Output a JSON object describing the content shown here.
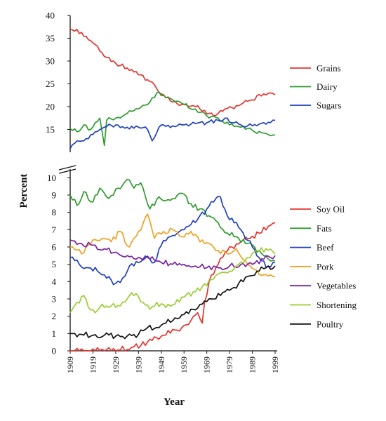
{
  "chart_data": {
    "type": "line",
    "xlabel": "Year",
    "ylabel": "Percent",
    "x_tick_labels": [
      "1909",
      "1919",
      "1929",
      "1939",
      "1949",
      "1959",
      "1969",
      "1979",
      "1989",
      "1999"
    ],
    "upper_panel": {
      "ylim": [
        10,
        40
      ],
      "y_tick_labels": [
        "15",
        "20",
        "25",
        "30",
        "35",
        "40"
      ],
      "legend_position": "right",
      "series": [
        {
          "name": "Grains",
          "color": "#e3342f",
          "points": [
            [
              1909,
              37
            ],
            [
              1914,
              36.3
            ],
            [
              1919,
              34
            ],
            [
              1924,
              31
            ],
            [
              1929,
              29.5
            ],
            [
              1934,
              28.5
            ],
            [
              1939,
              27
            ],
            [
              1944,
              25.5
            ],
            [
              1949,
              22.8
            ],
            [
              1954,
              21
            ],
            [
              1959,
              20.5
            ],
            [
              1964,
              20
            ],
            [
              1968,
              19.2
            ],
            [
              1972,
              18
            ],
            [
              1976,
              19
            ],
            [
              1980,
              19.8
            ],
            [
              1984,
              20.5
            ],
            [
              1989,
              21.5
            ],
            [
              1994,
              22.8
            ],
            [
              1997,
              23
            ],
            [
              1999,
              22.6
            ]
          ]
        },
        {
          "name": "Dairy",
          "color": "#2e9b2e",
          "points": [
            [
              1909,
              15.2
            ],
            [
              1912,
              14.5
            ],
            [
              1915,
              16
            ],
            [
              1918,
              15
            ],
            [
              1920,
              16.5
            ],
            [
              1922,
              17.5
            ],
            [
              1924,
              11.5
            ],
            [
              1925,
              17
            ],
            [
              1929,
              17.5
            ],
            [
              1934,
              18.5
            ],
            [
              1939,
              19.5
            ],
            [
              1944,
              21
            ],
            [
              1947,
              23
            ],
            [
              1950,
              22.5
            ],
            [
              1954,
              21.5
            ],
            [
              1959,
              20.5
            ],
            [
              1964,
              19.5
            ],
            [
              1969,
              18
            ],
            [
              1974,
              17.5
            ],
            [
              1979,
              16
            ],
            [
              1984,
              15.5
            ],
            [
              1989,
              14.8
            ],
            [
              1994,
              14.2
            ],
            [
              1999,
              13.8
            ]
          ]
        },
        {
          "name": "Sugars",
          "color": "#1f3fbf",
          "points": [
            [
              1909,
              10.8
            ],
            [
              1912,
              12.5
            ],
            [
              1916,
              13
            ],
            [
              1920,
              14.5
            ],
            [
              1924,
              15.5
            ],
            [
              1929,
              16
            ],
            [
              1934,
              15.5
            ],
            [
              1939,
              15.5
            ],
            [
              1943,
              15
            ],
            [
              1945,
              12.5
            ],
            [
              1948,
              15.5
            ],
            [
              1954,
              15.8
            ],
            [
              1959,
              16
            ],
            [
              1964,
              16.3
            ],
            [
              1969,
              16.5
            ],
            [
              1974,
              17
            ],
            [
              1977,
              17.5
            ],
            [
              1980,
              16.5
            ],
            [
              1984,
              16
            ],
            [
              1989,
              15.8
            ],
            [
              1994,
              16.5
            ],
            [
              1999,
              17
            ]
          ]
        }
      ]
    },
    "lower_panel": {
      "ylim": [
        0,
        10.5
      ],
      "y_tick_labels": [
        "0",
        "1",
        "2",
        "3",
        "4",
        "5",
        "6",
        "7",
        "8",
        "9",
        "10"
      ],
      "legend_position": "right",
      "series": [
        {
          "name": "Soy Oil",
          "color": "#e3342f",
          "points": [
            [
              1909,
              0
            ],
            [
              1920,
              0
            ],
            [
              1930,
              0.05
            ],
            [
              1936,
              0.2
            ],
            [
              1940,
              0.3
            ],
            [
              1945,
              0.6
            ],
            [
              1950,
              0.9
            ],
            [
              1955,
              1.2
            ],
            [
              1960,
              1.5
            ],
            [
              1965,
              2.2
            ],
            [
              1967,
              1.6
            ],
            [
              1968,
              2.8
            ],
            [
              1970,
              4
            ],
            [
              1973,
              4.8
            ],
            [
              1976,
              5.4
            ],
            [
              1980,
              6
            ],
            [
              1984,
              6.3
            ],
            [
              1988,
              6.5
            ],
            [
              1992,
              6.8
            ],
            [
              1996,
              7.2
            ],
            [
              1999,
              7.4
            ]
          ]
        },
        {
          "name": "Fats",
          "color": "#2e9b2e",
          "points": [
            [
              1909,
              9
            ],
            [
              1912,
              8.4
            ],
            [
              1915,
              9.2
            ],
            [
              1919,
              8.6
            ],
            [
              1922,
              9.4
            ],
            [
              1926,
              8.8
            ],
            [
              1930,
              9.4
            ],
            [
              1934,
              9.9
            ],
            [
              1937,
              9.4
            ],
            [
              1940,
              9.7
            ],
            [
              1944,
              8.2
            ],
            [
              1948,
              8.9
            ],
            [
              1953,
              8.7
            ],
            [
              1958,
              9.1
            ],
            [
              1962,
              8.5
            ],
            [
              1966,
              8.2
            ],
            [
              1970,
              7.8
            ],
            [
              1974,
              7.4
            ],
            [
              1978,
              6.8
            ],
            [
              1982,
              6.6
            ],
            [
              1986,
              6.2
            ],
            [
              1990,
              6
            ],
            [
              1994,
              5.5
            ],
            [
              1999,
              5.2
            ]
          ]
        },
        {
          "name": "Beef",
          "color": "#1f3fbf",
          "points": [
            [
              1909,
              5.4
            ],
            [
              1913,
              5
            ],
            [
              1917,
              4.8
            ],
            [
              1921,
              4.6
            ],
            [
              1925,
              4.2
            ],
            [
              1929,
              3.9
            ],
            [
              1932,
              4.2
            ],
            [
              1935,
              4.9
            ],
            [
              1939,
              5.1
            ],
            [
              1943,
              5.4
            ],
            [
              1946,
              5.1
            ],
            [
              1949,
              6.1
            ],
            [
              1953,
              6.6
            ],
            [
              1957,
              6.9
            ],
            [
              1961,
              7.2
            ],
            [
              1965,
              7.6
            ],
            [
              1969,
              8.2
            ],
            [
              1972,
              8.6
            ],
            [
              1975,
              8.9
            ],
            [
              1978,
              7.8
            ],
            [
              1981,
              7.4
            ],
            [
              1985,
              6.8
            ],
            [
              1989,
              6
            ],
            [
              1993,
              5.2
            ],
            [
              1996,
              4.9
            ],
            [
              1999,
              5.1
            ]
          ]
        },
        {
          "name": "Pork",
          "color": "#f0a020",
          "points": [
            [
              1909,
              6
            ],
            [
              1914,
              5.6
            ],
            [
              1919,
              6.4
            ],
            [
              1923,
              6.5
            ],
            [
              1927,
              6.3
            ],
            [
              1931,
              6.9
            ],
            [
              1935,
              6
            ],
            [
              1939,
              6.9
            ],
            [
              1943,
              7.9
            ],
            [
              1946,
              6.5
            ],
            [
              1950,
              6.9
            ],
            [
              1954,
              7
            ],
            [
              1958,
              6.6
            ],
            [
              1962,
              6.9
            ],
            [
              1966,
              6.3
            ],
            [
              1970,
              6.2
            ],
            [
              1974,
              5.8
            ],
            [
              1978,
              5.6
            ],
            [
              1982,
              5.9
            ],
            [
              1986,
              5.2
            ],
            [
              1990,
              4.7
            ],
            [
              1994,
              4.4
            ],
            [
              1999,
              4.3
            ]
          ]
        },
        {
          "name": "Vegetables",
          "color": "#7b1fa2",
          "points": [
            [
              1909,
              6.4
            ],
            [
              1914,
              6.2
            ],
            [
              1919,
              6.1
            ],
            [
              1924,
              5.9
            ],
            [
              1929,
              5.7
            ],
            [
              1934,
              5.5
            ],
            [
              1939,
              5.4
            ],
            [
              1944,
              5.3
            ],
            [
              1949,
              5.1
            ],
            [
              1954,
              5
            ],
            [
              1959,
              5
            ],
            [
              1964,
              4.9
            ],
            [
              1969,
              4.8
            ],
            [
              1974,
              4.8
            ],
            [
              1979,
              4.9
            ],
            [
              1984,
              5
            ],
            [
              1989,
              5
            ],
            [
              1994,
              5.3
            ],
            [
              1999,
              5.5
            ]
          ]
        },
        {
          "name": "Shortening",
          "color": "#9acd32",
          "points": [
            [
              1909,
              2.2
            ],
            [
              1912,
              2.8
            ],
            [
              1915,
              3.2
            ],
            [
              1917,
              2.5
            ],
            [
              1920,
              2.2
            ],
            [
              1923,
              2.7
            ],
            [
              1927,
              2.6
            ],
            [
              1931,
              2.6
            ],
            [
              1935,
              3.2
            ],
            [
              1938,
              3.3
            ],
            [
              1941,
              2.8
            ],
            [
              1944,
              2.4
            ],
            [
              1947,
              2.8
            ],
            [
              1951,
              2.5
            ],
            [
              1955,
              2.7
            ],
            [
              1959,
              3.1
            ],
            [
              1963,
              3.4
            ],
            [
              1967,
              3.7
            ],
            [
              1971,
              4.1
            ],
            [
              1975,
              4.5
            ],
            [
              1979,
              4.6
            ],
            [
              1983,
              5
            ],
            [
              1987,
              5.4
            ],
            [
              1991,
              5.8
            ],
            [
              1995,
              5.9
            ],
            [
              1999,
              5.6
            ]
          ]
        },
        {
          "name": "Poultry",
          "color": "#111111",
          "points": [
            [
              1909,
              1
            ],
            [
              1914,
              0.95
            ],
            [
              1919,
              0.9
            ],
            [
              1924,
              0.9
            ],
            [
              1929,
              0.85
            ],
            [
              1934,
              0.85
            ],
            [
              1939,
              0.95
            ],
            [
              1943,
              1.35
            ],
            [
              1947,
              1.35
            ],
            [
              1951,
              1.6
            ],
            [
              1955,
              1.9
            ],
            [
              1959,
              2.1
            ],
            [
              1963,
              2.4
            ],
            [
              1967,
              2.7
            ],
            [
              1971,
              3
            ],
            [
              1975,
              3.2
            ],
            [
              1979,
              3.5
            ],
            [
              1983,
              3.9
            ],
            [
              1987,
              4.3
            ],
            [
              1991,
              4.6
            ],
            [
              1995,
              4.8
            ],
            [
              1999,
              4.9
            ]
          ]
        }
      ]
    }
  }
}
